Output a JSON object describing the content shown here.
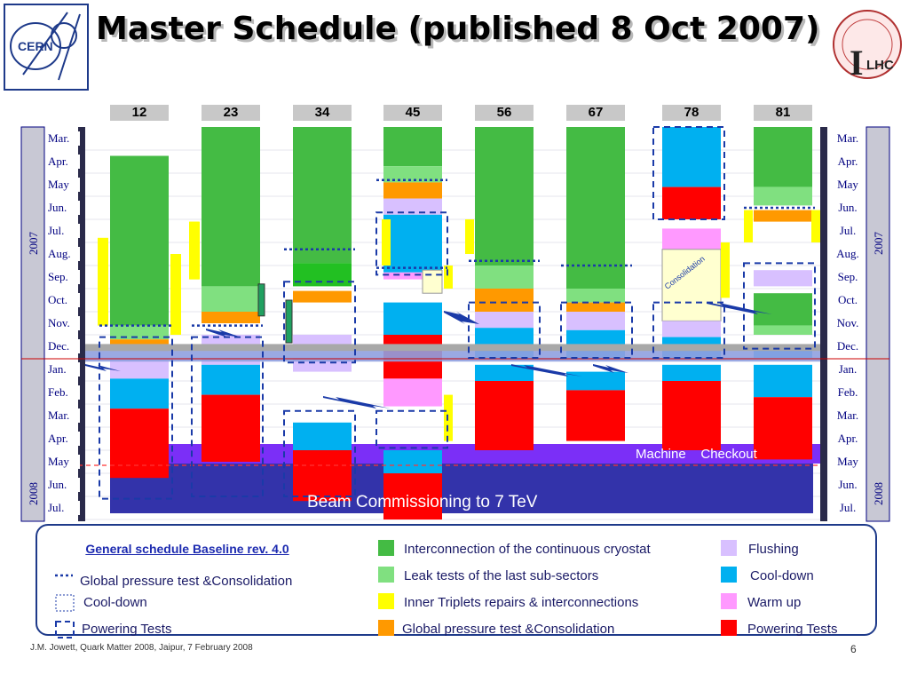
{
  "title": "Master Schedule (published 8 Oct 2007)",
  "logos": {
    "left": "CERN",
    "right_letter": "I",
    "right_text": "LHC"
  },
  "colors": {
    "interconnection": "#44bb44",
    "leak": "#80e080",
    "triplets": "#ffff00",
    "pressure": "#ff9900",
    "flushing": "#d8c0ff",
    "cooldown": "#00b0f0",
    "warmup": "#ff99ff",
    "powering": "#ff0000",
    "checkout": "#7b2ff7",
    "commissioning": "#3333aa",
    "dashed": "#1a3aa8"
  },
  "chart_data": {
    "type": "gantt",
    "sectors": [
      "12",
      "23",
      "34",
      "45",
      "56",
      "67",
      "78",
      "81"
    ],
    "months_left": [
      "Mar.",
      "Apr.",
      "May",
      "Jun.",
      "Jul.",
      "Aug.",
      "Sep.",
      "Oct.",
      "Nov.",
      "Dec.",
      "Jan.",
      "Feb.",
      "Mar.",
      "Apr.",
      "May",
      "Jun.",
      "Jul."
    ],
    "months_right": [
      "Mar.",
      "Apr.",
      "May",
      "Jun.",
      "Jul.",
      "Aug.",
      "Sep.",
      "Oct.",
      "Nov.",
      "Dec.",
      "Jan.",
      "Feb.",
      "Mar.",
      "Apr.",
      "May",
      "Jun.",
      "Jul."
    ],
    "years": [
      "2007",
      "2008"
    ],
    "activities": [
      {
        "sector": "12",
        "phase": "interconnection",
        "start": 1.25,
        "end": 8.6
      },
      {
        "sector": "12",
        "phase": "leak",
        "start": 8.6,
        "end": 9.2
      },
      {
        "sector": "12",
        "phase": "pressure",
        "start": 9.2,
        "end": 9.7
      },
      {
        "sector": "12",
        "phase": "flushing",
        "start": 10.0,
        "end": 10.9
      },
      {
        "sector": "12",
        "phase": "cooldown",
        "start": 10.9,
        "end": 12.2
      },
      {
        "sector": "12",
        "phase": "powering",
        "start": 12.2,
        "end": 15.2
      },
      {
        "sector": "12",
        "phase": "triplets",
        "start": 4.8,
        "end": 8.6,
        "offset": "left"
      },
      {
        "sector": "12",
        "phase": "triplets",
        "start": 5.5,
        "end": 9.0,
        "offset": "right"
      },
      {
        "sector": "23",
        "phase": "interconnection",
        "start": 0,
        "end": 6.9
      },
      {
        "sector": "23",
        "phase": "leak",
        "start": 6.9,
        "end": 8.0
      },
      {
        "sector": "23",
        "phase": "pressure",
        "start": 8.0,
        "end": 8.5
      },
      {
        "sector": "23",
        "phase": "flushing",
        "start": 9.0,
        "end": 9.5
      },
      {
        "sector": "23",
        "phase": "flushing",
        "start": 10.0,
        "end": 10.3
      },
      {
        "sector": "23",
        "phase": "cooldown",
        "start": 10.3,
        "end": 11.6
      },
      {
        "sector": "23",
        "phase": "powering",
        "start": 11.6,
        "end": 14.5
      },
      {
        "sector": "23",
        "phase": "triplets",
        "start": 4.1,
        "end": 6.6,
        "offset": "left"
      },
      {
        "sector": "34",
        "phase": "interconnection",
        "start": 0,
        "end": 5.9
      },
      {
        "sector": "34",
        "phase": "interconnection_dark",
        "start": 5.9,
        "end": 6.9
      },
      {
        "sector": "34",
        "phase": "pressure",
        "start": 7.1,
        "end": 7.6
      },
      {
        "sector": "34",
        "phase": "flushing",
        "start": 9.0,
        "end": 9.5
      },
      {
        "sector": "34",
        "phase": "flushing",
        "start": 10.0,
        "end": 10.6
      },
      {
        "sector": "34",
        "phase": "cooldown",
        "start": 12.8,
        "end": 14.0
      },
      {
        "sector": "34",
        "phase": "powering",
        "start": 14.0,
        "end": 16.2
      },
      {
        "sector": "45",
        "phase": "interconnection",
        "start": 0,
        "end": 1.7
      },
      {
        "sector": "45",
        "phase": "leak",
        "start": 1.7,
        "end": 2.4
      },
      {
        "sector": "45",
        "phase": "pressure",
        "start": 2.4,
        "end": 3.1
      },
      {
        "sector": "45",
        "phase": "flushing",
        "start": 3.1,
        "end": 3.8
      },
      {
        "sector": "45",
        "phase": "cooldown",
        "start": 3.8,
        "end": 6.3
      },
      {
        "sector": "45",
        "phase": "warmup",
        "start": 6.3,
        "end": 6.6
      },
      {
        "sector": "45",
        "phase": "cooldown",
        "start": 7.6,
        "end": 9.0
      },
      {
        "sector": "45",
        "phase": "powering",
        "start": 9.0,
        "end": 10.9
      },
      {
        "sector": "45",
        "phase": "warmup",
        "start": 10.9,
        "end": 12.1
      },
      {
        "sector": "45",
        "phase": "cooldown",
        "start": 14.0,
        "end": 15.0
      },
      {
        "sector": "45",
        "phase": "powering",
        "start": 15.0,
        "end": 17.0
      },
      {
        "sector": "56",
        "phase": "interconnection",
        "start": 0,
        "end": 6.0
      },
      {
        "sector": "56",
        "phase": "leak",
        "start": 6.0,
        "end": 7.0
      },
      {
        "sector": "56",
        "phase": "pressure",
        "start": 7.0,
        "end": 8.0
      },
      {
        "sector": "56",
        "phase": "flushing",
        "start": 8.0,
        "end": 8.7
      },
      {
        "sector": "56",
        "phase": "cooldown",
        "start": 8.7,
        "end": 10.0
      },
      {
        "sector": "56",
        "phase": "cooldown",
        "start": 10.3,
        "end": 11.0
      },
      {
        "sector": "56",
        "phase": "powering",
        "start": 11.0,
        "end": 14.0
      },
      {
        "sector": "67",
        "phase": "interconnection",
        "start": 0,
        "end": 7.0
      },
      {
        "sector": "67",
        "phase": "leak",
        "start": 7.0,
        "end": 7.6
      },
      {
        "sector": "67",
        "phase": "pressure",
        "start": 7.6,
        "end": 8.0
      },
      {
        "sector": "67",
        "phase": "flushing",
        "start": 8.0,
        "end": 8.8
      },
      {
        "sector": "67",
        "phase": "cooldown",
        "start": 8.8,
        "end": 10.0
      },
      {
        "sector": "67",
        "phase": "cooldown",
        "start": 10.6,
        "end": 11.4
      },
      {
        "sector": "67",
        "phase": "powering",
        "start": 11.4,
        "end": 13.6
      },
      {
        "sector": "78",
        "phase": "cooldown",
        "start": 0,
        "end": 2.6
      },
      {
        "sector": "78",
        "phase": "powering",
        "start": 2.6,
        "end": 4.0
      },
      {
        "sector": "78",
        "phase": "warmup",
        "start": 4.4,
        "end": 5.3
      },
      {
        "sector": "78",
        "phase": "consolidation",
        "start": 5.3,
        "end": 8.4
      },
      {
        "sector": "78",
        "phase": "flushing",
        "start": 8.4,
        "end": 9.1
      },
      {
        "sector": "78",
        "phase": "cooldown",
        "start": 9.1,
        "end": 10.0
      },
      {
        "sector": "78",
        "phase": "cooldown",
        "start": 10.3,
        "end": 11.0
      },
      {
        "sector": "78",
        "phase": "powering",
        "start": 11.0,
        "end": 14.0
      },
      {
        "sector": "81",
        "phase": "interconnection",
        "start": 0,
        "end": 2.6
      },
      {
        "sector": "81",
        "phase": "leak",
        "start": 2.6,
        "end": 3.4
      },
      {
        "sector": "81",
        "phase": "pressure",
        "start": 3.6,
        "end": 4.1
      },
      {
        "sector": "81",
        "phase": "flushing",
        "start": 6.2,
        "end": 6.9
      },
      {
        "sector": "81",
        "phase": "interconnection",
        "start": 7.2,
        "end": 8.6
      },
      {
        "sector": "81",
        "phase": "leak",
        "start": 8.6,
        "end": 9.0
      },
      {
        "sector": "81",
        "phase": "cooldown",
        "start": 9.5,
        "end": 10.0
      },
      {
        "sector": "81",
        "phase": "cooldown",
        "start": 10.3,
        "end": 11.7
      },
      {
        "sector": "81",
        "phase": "powering",
        "start": 11.7,
        "end": 14.4
      }
    ],
    "band_labels": {
      "consolidation": "Consolidation",
      "checkout": "Machine    Checkout",
      "commissioning": "Beam Commissioning to 7 TeV"
    }
  },
  "legend": {
    "baseline_title": "General schedule Baseline rev. 4.0",
    "left": [
      {
        "label": "Global pressure test &Consolidation",
        "style": "dotted"
      },
      {
        "label": "Cool-down",
        "style": "dotted-box"
      },
      {
        "label": "Powering Tests",
        "style": "dashed-box"
      }
    ],
    "middle": [
      {
        "label": "Interconnection of the continuous cryostat",
        "color": "#44bb44"
      },
      {
        "label": "Leak tests of the last sub-sectors",
        "color": "#80e080"
      },
      {
        "label": "Inner Triplets repairs & interconnections",
        "color": "#ffff00"
      },
      {
        "label": "Global pressure test &Consolidation",
        "color": "#ff9900"
      }
    ],
    "right": [
      {
        "label": "Flushing",
        "color": "#d8c0ff"
      },
      {
        "label": "Cool-down",
        "color": "#00b0f0"
      },
      {
        "label": "Warm up",
        "color": "#ff99ff"
      },
      {
        "label": "Powering Tests",
        "color": "#ff0000"
      }
    ]
  },
  "footer": "J.M. Jowett, Quark Matter 2008, Jaipur, 7 February 2008",
  "page_number": "6"
}
